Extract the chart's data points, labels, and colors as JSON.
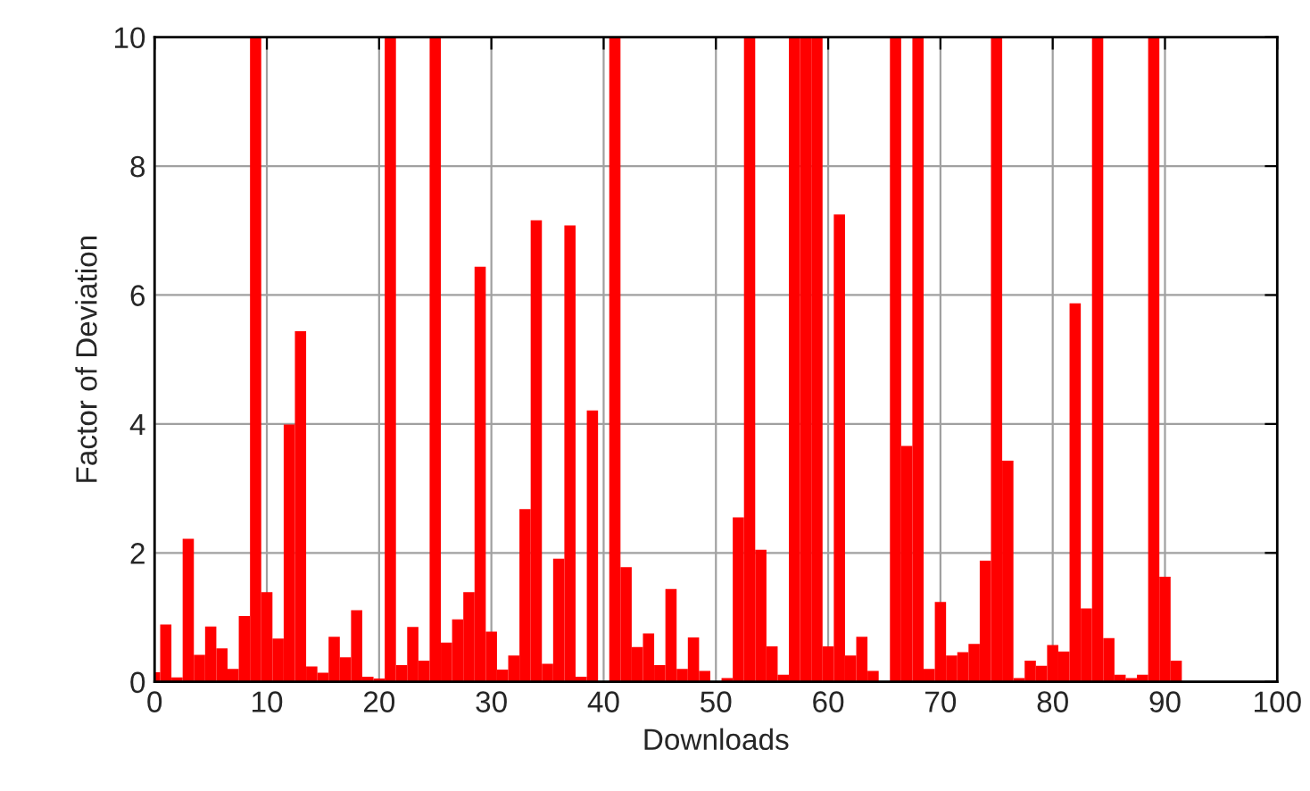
{
  "chart_data": {
    "type": "bar",
    "xlabel": "Downloads",
    "ylabel": "Factor of Deviation",
    "x": [
      0,
      1,
      2,
      3,
      4,
      5,
      6,
      7,
      8,
      9,
      10,
      11,
      12,
      13,
      14,
      15,
      16,
      17,
      18,
      19,
      20,
      21,
      22,
      23,
      24,
      25,
      26,
      27,
      28,
      29,
      30,
      31,
      32,
      33,
      34,
      35,
      36,
      37,
      38,
      39,
      40,
      41,
      42,
      43,
      44,
      45,
      46,
      47,
      48,
      49,
      50,
      51,
      52,
      53,
      54,
      55,
      56,
      57,
      58,
      59,
      60,
      61,
      62,
      63,
      64,
      65,
      66,
      67,
      68,
      69,
      70,
      71,
      72,
      73,
      74,
      75,
      76,
      77,
      78,
      79,
      80,
      81,
      82,
      83,
      84,
      85,
      86,
      87,
      88,
      89,
      90,
      91
    ],
    "values": [
      0.15,
      0.89,
      0.07,
      2.22,
      0.42,
      0.86,
      0.52,
      0.2,
      1.02,
      10,
      1.39,
      0.67,
      3.99,
      5.44,
      0.24,
      0.14,
      0.7,
      0.38,
      1.11,
      0.08,
      0.05,
      10,
      0.26,
      0.85,
      0.33,
      10,
      0.61,
      0.97,
      1.39,
      6.44,
      0.78,
      0.19,
      0.41,
      2.68,
      7.16,
      0.28,
      1.91,
      7.08,
      0.08,
      4.21,
      null,
      10,
      1.78,
      0.54,
      0.75,
      0.26,
      1.44,
      0.2,
      0.69,
      0.17,
      null,
      0.06,
      2.55,
      10,
      2.05,
      0.55,
      0.11,
      10,
      10,
      10,
      0.55,
      7.25,
      0.41,
      0.7,
      0.17,
      null,
      10,
      3.66,
      10,
      0.2,
      1.24,
      0.41,
      0.46,
      0.59,
      1.88,
      10,
      3.43,
      0.06,
      0.33,
      0.25,
      0.57,
      0.47,
      5.87,
      1.14,
      10,
      0.68,
      0.11,
      0.06,
      0.11,
      10,
      1.63,
      0.33
    ],
    "color": "#ff0000",
    "xlim": [
      0,
      100
    ],
    "ylim": [
      0,
      10
    ],
    "xticks": [
      0,
      10,
      20,
      30,
      40,
      50,
      60,
      70,
      80,
      90,
      100
    ],
    "yticks": [
      0,
      2,
      4,
      6,
      8,
      10
    ],
    "grid": true
  }
}
